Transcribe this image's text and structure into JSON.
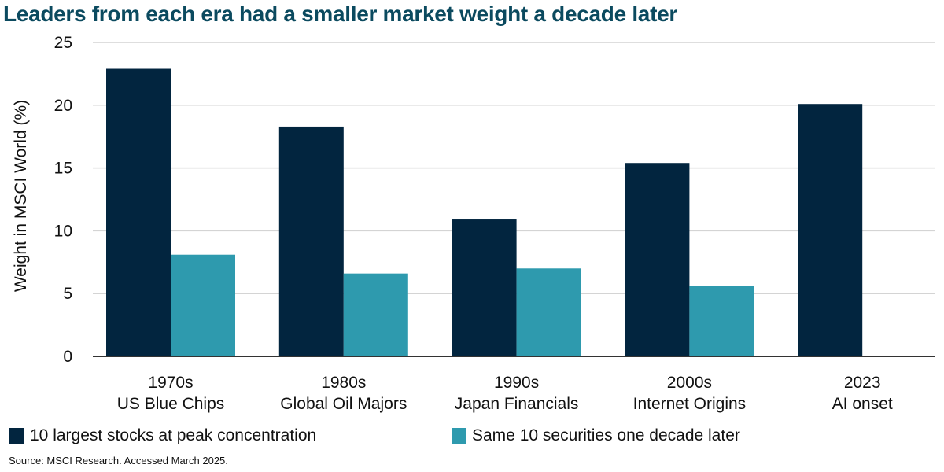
{
  "chart_data": {
    "type": "bar",
    "title": "Leaders from each era had a smaller market weight a decade later",
    "xlabel": "",
    "ylabel": "Weight in MSCI World (%)",
    "ylim": [
      0,
      25
    ],
    "yticks": [
      0,
      5,
      10,
      15,
      20,
      25
    ],
    "ytick_labels": [
      "0",
      "5",
      "10",
      "15",
      "20",
      "25"
    ],
    "grid": true,
    "legend_position": "bottom",
    "categories": [
      {
        "line1": "1970s",
        "line2": "US Blue Chips"
      },
      {
        "line1": "1980s",
        "line2": "Global Oil Majors"
      },
      {
        "line1": "1990s",
        "line2": "Japan Financials"
      },
      {
        "line1": "2000s",
        "line2": "Internet Origins"
      },
      {
        "line1": "2023",
        "line2": "AI onset"
      }
    ],
    "series": [
      {
        "name": "10 largest stocks at peak concentration",
        "color": "#02253f",
        "values": [
          22.9,
          18.3,
          10.9,
          15.4,
          20.1
        ]
      },
      {
        "name": "Same 10 securities one decade later",
        "color": "#2e9aae",
        "values": [
          8.1,
          6.6,
          7.0,
          5.6,
          null
        ]
      }
    ],
    "source": "Source: MSCI Research. Accessed March 2025."
  },
  "colors": {
    "title": "#0b4a5f",
    "gridline": "#d4d4d4",
    "baseline": "#333333"
  }
}
